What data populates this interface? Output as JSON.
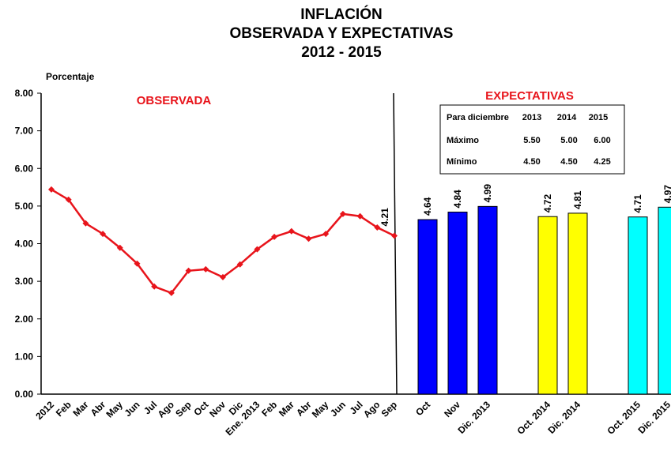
{
  "title": [
    "INFLACIÓN",
    "OBSERVADA Y EXPECTATIVAS",
    "2012 - 2015"
  ],
  "y_label": "Porcentaje",
  "chart_data": [
    {
      "type": "line",
      "annotation": "OBSERVADA",
      "color": "#e8141b",
      "categories": [
        "2012",
        "Feb",
        "Mar",
        "Abr",
        "May",
        "Jun",
        "Jul",
        "Ago",
        "Sep",
        "Oct",
        "Nov",
        "Dic",
        "Ene. 2013",
        "Feb",
        "Mar",
        "Abr",
        "May",
        "Jun",
        "Jul",
        "Ago",
        "Sep"
      ],
      "values": [
        5.44,
        5.17,
        4.54,
        4.26,
        3.89,
        3.47,
        2.86,
        2.69,
        3.28,
        3.32,
        3.11,
        3.45,
        3.85,
        4.18,
        4.33,
        4.13,
        4.26,
        4.79,
        4.73,
        4.43,
        4.21
      ],
      "value_labels": [
        null,
        null,
        null,
        null,
        null,
        null,
        null,
        null,
        null,
        null,
        null,
        null,
        null,
        null,
        null,
        null,
        null,
        null,
        null,
        null,
        "4.21"
      ],
      "ylim": [
        0,
        8
      ],
      "yticks": [
        {
          "value": 0,
          "label": "0.00"
        },
        {
          "value": 1,
          "label": "1.00"
        },
        {
          "value": 2,
          "label": "2.00"
        },
        {
          "value": 3,
          "label": "3.00"
        },
        {
          "value": 4,
          "label": "4.00"
        },
        {
          "value": 5,
          "label": "5.00"
        },
        {
          "value": 6,
          "label": "6.00"
        },
        {
          "value": 7,
          "label": "7.00"
        },
        {
          "value": 8,
          "label": "8.00"
        }
      ]
    },
    {
      "type": "bar",
      "annotation": "EXPECTATIVAS",
      "categories": [
        "Oct",
        "Nov",
        "Dic. 2013",
        null,
        "Oct. 2014",
        "Dic. 2014",
        null,
        "Oct. 2015",
        "Dic. 2015"
      ],
      "values": [
        4.64,
        4.84,
        4.99,
        null,
        4.72,
        4.81,
        null,
        4.71,
        4.97
      ],
      "colors": [
        "#0000ff",
        "#0000ff",
        "#0000ff",
        null,
        "#ffff00",
        "#ffff00",
        null,
        "#00ffff",
        "#00ffff"
      ],
      "ylim": [
        0,
        8
      ]
    }
  ],
  "table": {
    "header": [
      "Para diciembre",
      "2013",
      "2014",
      "2015"
    ],
    "rows": [
      [
        "Máximo",
        "5.50",
        "5.00",
        "6.00"
      ],
      [
        "Mínimo",
        "4.50",
        "4.50",
        "4.25"
      ]
    ]
  }
}
